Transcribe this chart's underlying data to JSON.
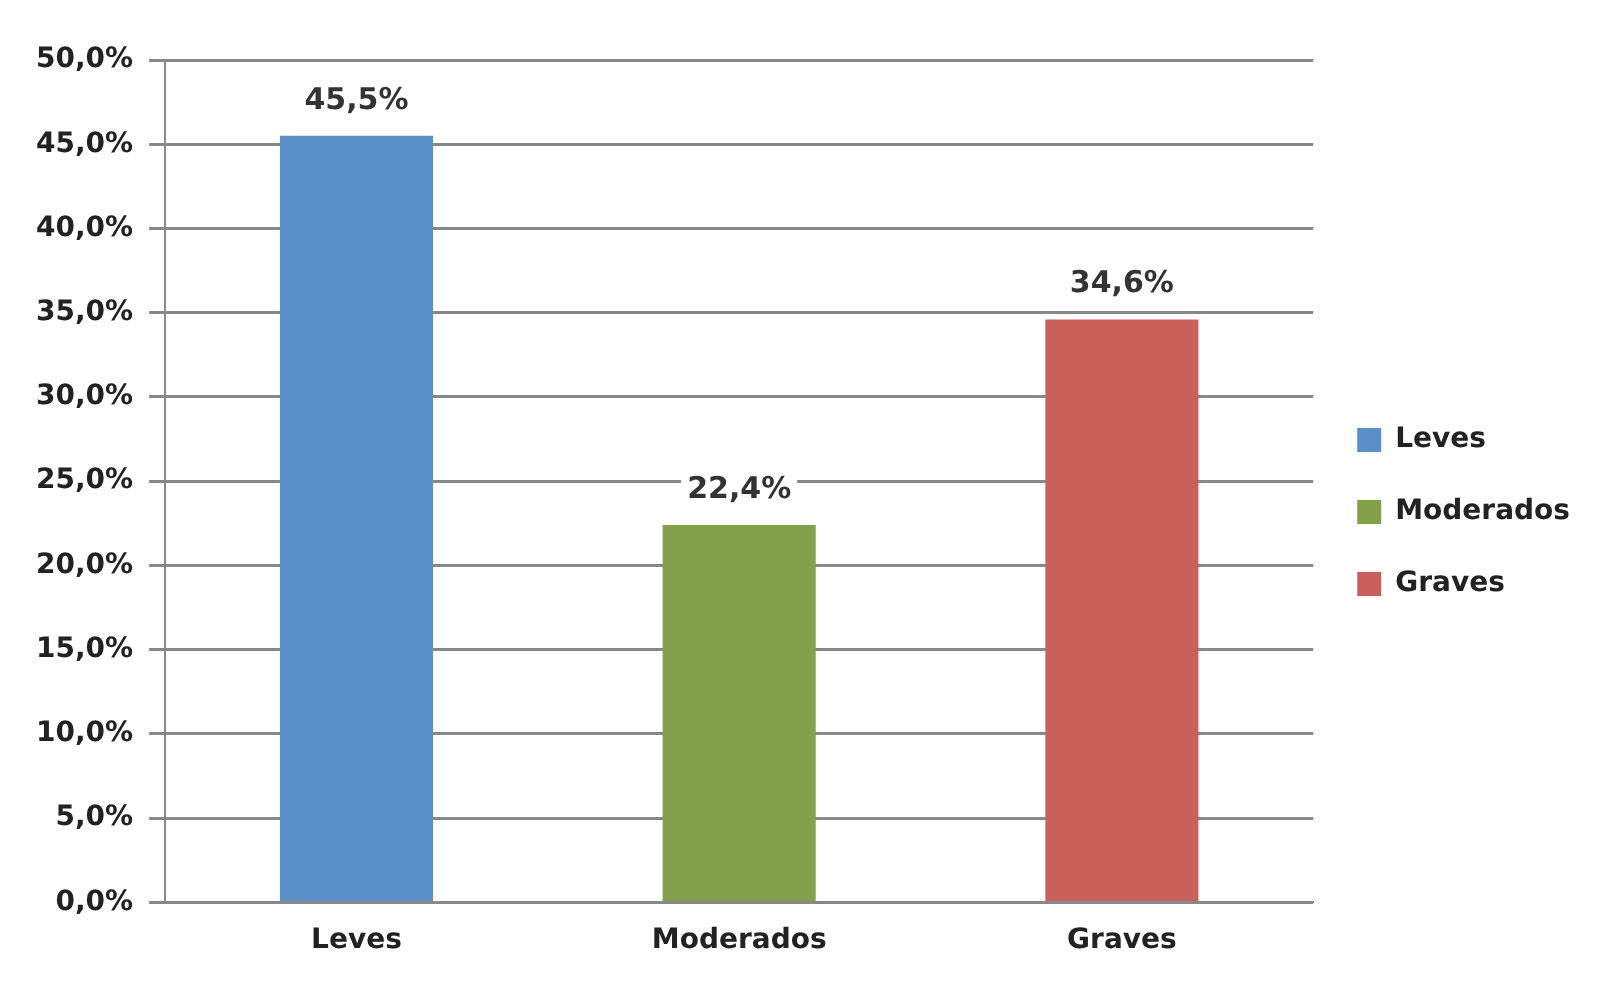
{
  "chart_data": {
    "type": "bar",
    "categories": [
      "Leves",
      "Moderados",
      "Graves"
    ],
    "series": [
      {
        "name": "Leves",
        "color": "#5b8fc7",
        "values": [
          45.5,
          null,
          null
        ],
        "value_labels": [
          "45,5%",
          null,
          null
        ]
      },
      {
        "name": "Moderados",
        "color": "#84a04a",
        "values": [
          null,
          22.4,
          null
        ],
        "value_labels": [
          null,
          "22,4%",
          null
        ]
      },
      {
        "name": "Graves",
        "color": "#c9605c",
        "values": [
          null,
          null,
          34.6
        ],
        "value_labels": [
          null,
          null,
          "34,6%"
        ]
      }
    ],
    "ylim": [
      0,
      50
    ],
    "yticks": [
      {
        "value": 0,
        "label": "0,0%"
      },
      {
        "value": 5,
        "label": "5,0%"
      },
      {
        "value": 10,
        "label": "10,0%"
      },
      {
        "value": 15,
        "label": "15,0%"
      },
      {
        "value": 20,
        "label": "20,0%"
      },
      {
        "value": 25,
        "label": "25,0%"
      },
      {
        "value": 30,
        "label": "30,0%"
      },
      {
        "value": 35,
        "label": "35,0%"
      },
      {
        "value": 40,
        "label": "40,0%"
      },
      {
        "value": 45,
        "label": "45,0%"
      },
      {
        "value": 50,
        "label": "50,0%"
      }
    ],
    "grid": "y",
    "legend": "right"
  }
}
